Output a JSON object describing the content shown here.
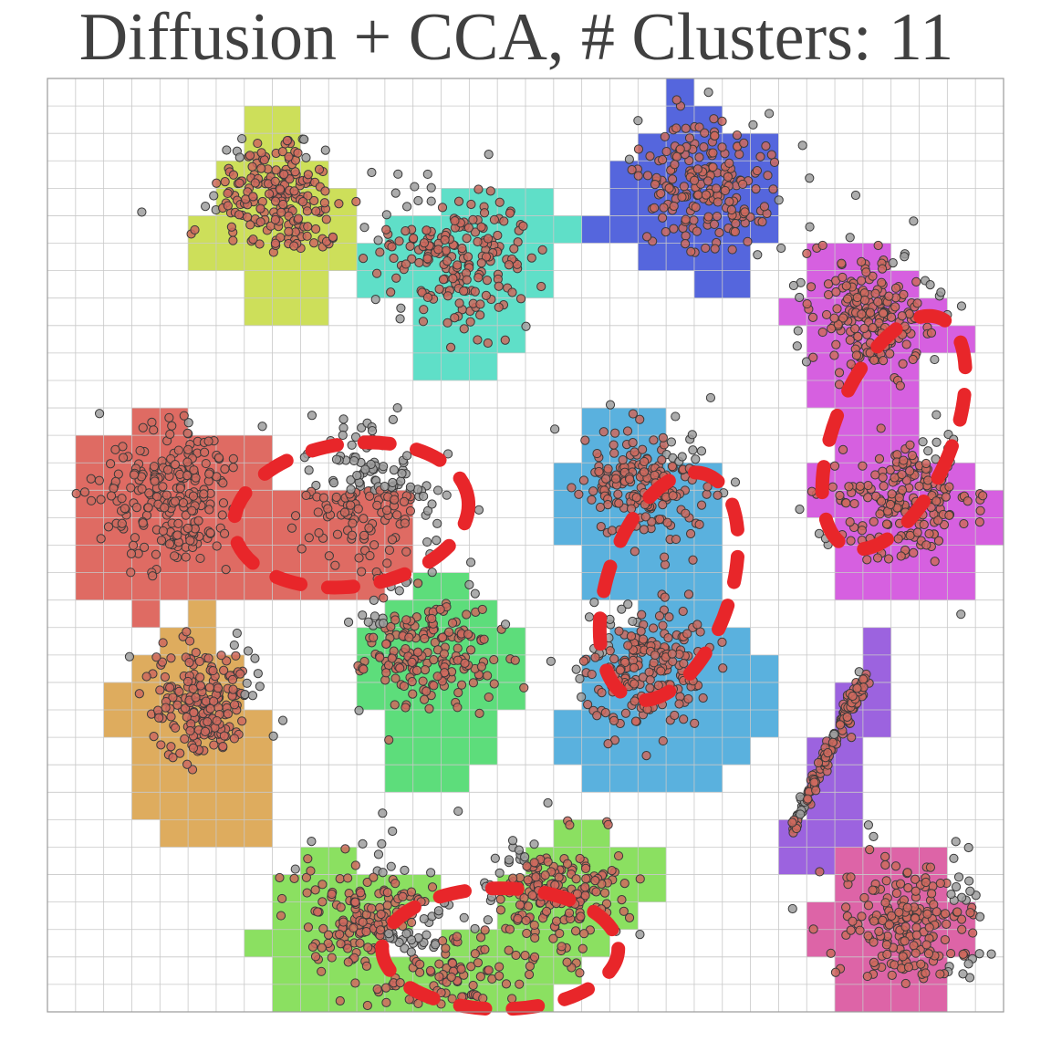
{
  "chart_data": {
    "type": "scatter",
    "title": "Diffusion + CCA, # Clusters: 11",
    "xlabel": "",
    "ylabel": "",
    "grid": true,
    "grid_size": [
      34,
      34
    ],
    "xlim": [
      0,
      34
    ],
    "ylim": [
      0,
      34
    ],
    "point_fill": "#ce6a5e",
    "point_fill_unassigned": "#9e9e9e",
    "merge_marker_color": "#e8262a",
    "clusters": [
      {
        "id": "yellow",
        "color": "#cddf5a",
        "rows": [
          [
            1,
            7,
            8
          ],
          [
            2,
            7,
            8
          ],
          [
            3,
            6,
            9
          ],
          [
            4,
            6,
            10
          ],
          [
            5,
            5,
            10
          ],
          [
            6,
            5,
            10
          ],
          [
            7,
            7,
            9
          ],
          [
            8,
            7,
            9
          ]
        ],
        "blobs": [
          [
            8.2,
            4.3,
            1.2,
            40
          ]
        ]
      },
      {
        "id": "teal",
        "color": "#5fdfc8",
        "rows": [
          [
            4,
            14,
            17
          ],
          [
            5,
            12,
            18
          ],
          [
            6,
            11,
            17
          ],
          [
            7,
            11,
            17
          ],
          [
            8,
            13,
            16
          ],
          [
            9,
            13,
            16
          ],
          [
            10,
            13,
            15
          ]
        ],
        "blobs": [
          [
            14.5,
            6.5,
            1.3,
            40
          ]
        ]
      },
      {
        "id": "blue",
        "color": "#5566dd",
        "rows": [
          [
            0,
            22,
            22
          ],
          [
            1,
            22,
            23
          ],
          [
            2,
            21,
            25
          ],
          [
            3,
            20,
            25
          ],
          [
            4,
            20,
            25
          ],
          [
            5,
            19,
            25
          ],
          [
            6,
            21,
            24
          ],
          [
            7,
            23,
            24
          ]
        ],
        "blobs": [
          [
            23.5,
            3.8,
            1.2,
            40
          ]
        ]
      },
      {
        "id": "magenta",
        "color": "#d660e0",
        "rows": [
          [
            6,
            27,
            29
          ],
          [
            7,
            27,
            30
          ],
          [
            8,
            26,
            31
          ],
          [
            9,
            27,
            32
          ],
          [
            10,
            27,
            30
          ],
          [
            11,
            27,
            30
          ],
          [
            12,
            28,
            30
          ],
          [
            13,
            28,
            30
          ],
          [
            14,
            27,
            32
          ],
          [
            15,
            27,
            33
          ],
          [
            16,
            28,
            33
          ],
          [
            17,
            28,
            32
          ],
          [
            18,
            28,
            32
          ]
        ],
        "blobs": [
          [
            29.3,
            8.5,
            1.1,
            40
          ],
          [
            30.5,
            15.4,
            1.2,
            40
          ]
        ]
      },
      {
        "id": "red",
        "color": "#df6b63",
        "rows": [
          [
            12,
            3,
            4
          ],
          [
            13,
            1,
            7
          ],
          [
            14,
            1,
            7
          ],
          [
            15,
            1,
            12
          ],
          [
            16,
            1,
            12
          ],
          [
            17,
            1,
            12
          ],
          [
            18,
            1,
            11
          ],
          [
            19,
            3,
            3
          ],
          [
            19,
            5,
            5
          ]
        ],
        "blobs": [
          [
            4.5,
            15.3,
            1.3,
            45
          ],
          [
            11.5,
            15.2,
            1.2,
            35
          ]
        ]
      },
      {
        "id": "sky",
        "color": "#5ab1de",
        "rows": [
          [
            12,
            19,
            21
          ],
          [
            13,
            19,
            21
          ],
          [
            14,
            18,
            23
          ],
          [
            15,
            18,
            23
          ],
          [
            16,
            18,
            23
          ],
          [
            17,
            19,
            23
          ],
          [
            18,
            19,
            23
          ],
          [
            19,
            21,
            23
          ],
          [
            20,
            20,
            24
          ],
          [
            21,
            19,
            25
          ],
          [
            22,
            19,
            25
          ],
          [
            23,
            18,
            25
          ],
          [
            24,
            18,
            24
          ],
          [
            25,
            19,
            23
          ]
        ],
        "blobs": [
          [
            21.3,
            14.8,
            1.1,
            40
          ],
          [
            21.2,
            21.5,
            1.1,
            40
          ]
        ]
      },
      {
        "id": "green",
        "color": "#5ddd7b",
        "rows": [
          [
            18,
            13,
            14
          ],
          [
            19,
            12,
            15
          ],
          [
            20,
            11,
            16
          ],
          [
            21,
            11,
            16
          ],
          [
            22,
            11,
            16
          ],
          [
            23,
            12,
            15
          ],
          [
            24,
            12,
            15
          ],
          [
            25,
            12,
            14
          ]
        ],
        "blobs": [
          [
            13.5,
            20.8,
            1.2,
            40
          ]
        ]
      },
      {
        "id": "orange",
        "color": "#deac5e",
        "rows": [
          [
            19,
            5,
            5
          ],
          [
            20,
            4,
            5
          ],
          [
            21,
            3,
            6
          ],
          [
            22,
            2,
            6
          ],
          [
            23,
            2,
            7
          ],
          [
            24,
            3,
            7
          ],
          [
            25,
            3,
            7
          ],
          [
            26,
            3,
            7
          ],
          [
            27,
            4,
            7
          ]
        ],
        "blobs": [
          [
            5.6,
            22.8,
            1.0,
            40
          ]
        ]
      },
      {
        "id": "purple",
        "color": "#9c63df",
        "rows": [
          [
            20,
            29,
            29
          ],
          [
            21,
            29,
            29
          ],
          [
            22,
            28,
            29
          ],
          [
            23,
            28,
            29
          ],
          [
            24,
            27,
            28
          ],
          [
            25,
            27,
            28
          ],
          [
            26,
            27,
            28
          ],
          [
            27,
            26,
            28
          ],
          [
            28,
            26,
            27
          ]
        ],
        "blobs": [
          [
            27.8,
            24.5,
            0.3,
            30
          ]
        ]
      },
      {
        "id": "lime",
        "color": "#8be061",
        "rows": [
          [
            27,
            18,
            19
          ],
          [
            28,
            9,
            10
          ],
          [
            28,
            17,
            21
          ],
          [
            29,
            8,
            13
          ],
          [
            29,
            16,
            21
          ],
          [
            30,
            8,
            12
          ],
          [
            30,
            16,
            20
          ],
          [
            31,
            7,
            11
          ],
          [
            31,
            14,
            19
          ],
          [
            32,
            8,
            18
          ],
          [
            33,
            8,
            17
          ],
          [
            34,
            9,
            10
          ],
          [
            34,
            14,
            17
          ]
        ],
        "blobs": [
          [
            11.5,
            30.7,
            1.3,
            40
          ],
          [
            18.0,
            29.7,
            1.2,
            40
          ],
          [
            14.5,
            32.5,
            1.0,
            15
          ]
        ]
      },
      {
        "id": "pink",
        "color": "#dd64a7",
        "rows": [
          [
            28,
            28,
            31
          ],
          [
            29,
            28,
            31
          ],
          [
            30,
            27,
            32
          ],
          [
            31,
            27,
            32
          ],
          [
            32,
            28,
            31
          ],
          [
            33,
            28,
            31
          ],
          [
            34,
            30,
            30
          ]
        ],
        "blobs": [
          [
            30.6,
            30.8,
            1.2,
            40
          ]
        ]
      }
    ],
    "merge_markers": [
      {
        "cx": 10.8,
        "cy": 15.9,
        "rx": 4.2,
        "ry": 2.6,
        "angle": -8
      },
      {
        "cx": 22.1,
        "cy": 18.5,
        "rx": 2.2,
        "ry": 4.3,
        "angle": 18
      },
      {
        "cx": 30.1,
        "cy": 12.9,
        "rx": 2.1,
        "ry": 4.5,
        "angle": 22
      },
      {
        "cx": 16.1,
        "cy": 31.7,
        "rx": 4.2,
        "ry": 2.2,
        "angle": 0
      }
    ]
  }
}
